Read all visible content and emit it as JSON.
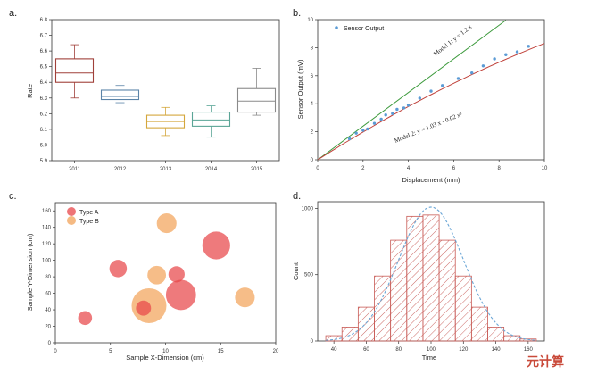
{
  "chart_data": [
    {
      "panel": "a.",
      "type": "box",
      "categories": [
        "2011",
        "2012",
        "2013",
        "2014",
        "2015"
      ],
      "boxes": [
        {
          "min": 6.3,
          "q1": 6.4,
          "median": 6.46,
          "q3": 6.55,
          "max": 6.64,
          "color": "#a0403a"
        },
        {
          "min": 6.27,
          "q1": 6.29,
          "median": 6.31,
          "q3": 6.35,
          "max": 6.38,
          "color": "#5b84a8"
        },
        {
          "min": 6.06,
          "q1": 6.11,
          "median": 6.15,
          "q3": 6.19,
          "max": 6.24,
          "color": "#d4a73c"
        },
        {
          "min": 6.05,
          "q1": 6.12,
          "median": 6.16,
          "q3": 6.21,
          "max": 6.25,
          "color": "#5aa596"
        },
        {
          "min": 6.19,
          "q1": 6.21,
          "median": 6.28,
          "q3": 6.36,
          "max": 6.49,
          "color": "#8a8a8a"
        }
      ],
      "ylabel": "Rate",
      "xlabel": "",
      "ylim": [
        5.9,
        6.8
      ],
      "yticks": [
        "5.9",
        "6.0",
        "6.1",
        "6.2",
        "6.3",
        "6.4",
        "6.5",
        "6.6",
        "6.7",
        "6.8"
      ]
    },
    {
      "panel": "b.",
      "type": "scatter+line",
      "xlabel": "Displacement (mm)",
      "ylabel": "Sensor Output (mV)",
      "xlim": [
        0,
        10
      ],
      "ylim": [
        0,
        10
      ],
      "xticks": [
        "0",
        "2",
        "4",
        "6",
        "8",
        "10"
      ],
      "yticks": [
        "0",
        "2",
        "4",
        "6",
        "8",
        "10"
      ],
      "legend_label": "Sensor Output",
      "points": {
        "x": [
          1.4,
          1.7,
          2.0,
          2.2,
          2.5,
          2.8,
          3.0,
          3.3,
          3.5,
          3.8,
          4.0,
          4.5,
          5.0,
          5.5,
          6.2,
          6.8,
          7.3,
          7.8,
          8.3,
          8.8,
          9.3
        ],
        "y": [
          1.5,
          1.9,
          2.1,
          2.2,
          2.6,
          2.9,
          3.2,
          3.3,
          3.6,
          3.7,
          3.9,
          4.4,
          4.9,
          5.3,
          5.8,
          6.2,
          6.7,
          7.2,
          7.5,
          7.7,
          8.1
        ]
      },
      "model1": {
        "label": "Model 1: y = 1.2 x",
        "slope": 1.2,
        "color": "#3c9a3c"
      },
      "model2": {
        "label": "Model 2: y = 1.03 x - 0.02 x²",
        "a": 1.03,
        "b": -0.02,
        "color": "#c0413a"
      },
      "point_color": "#5b9bd5"
    },
    {
      "panel": "c.",
      "type": "bubble",
      "xlabel": "Sample X-Dimension (cm)",
      "ylabel": "Sample Y-Dimension (cm)",
      "xlim": [
        0,
        20
      ],
      "ylim": [
        0,
        170
      ],
      "xticks": [
        "0",
        "5",
        "10",
        "15",
        "20"
      ],
      "yticks": [
        "0",
        "20",
        "40",
        "60",
        "80",
        "100",
        "120",
        "140",
        "160"
      ],
      "legend": [
        "Type A",
        "Type B"
      ],
      "colors": {
        "Type A": "#e8464a",
        "Type B": "#f2a35a"
      },
      "bubbles": [
        {
          "type": "Type B",
          "x": 10.1,
          "y": 145,
          "size": 17
        },
        {
          "type": "Type A",
          "x": 14.6,
          "y": 118,
          "size": 24
        },
        {
          "type": "Type A",
          "x": 5.7,
          "y": 90,
          "size": 15
        },
        {
          "type": "Type B",
          "x": 9.2,
          "y": 82,
          "size": 16
        },
        {
          "type": "Type A",
          "x": 11.0,
          "y": 83,
          "size": 14
        },
        {
          "type": "Type A",
          "x": 11.4,
          "y": 58,
          "size": 26
        },
        {
          "type": "Type B",
          "x": 8.5,
          "y": 45,
          "size": 30
        },
        {
          "type": "Type A",
          "x": 8.0,
          "y": 42,
          "size": 13
        },
        {
          "type": "Type B",
          "x": 17.2,
          "y": 55,
          "size": 17
        },
        {
          "type": "Type A",
          "x": 2.7,
          "y": 30,
          "size": 12
        }
      ]
    },
    {
      "panel": "d.",
      "type": "histogram",
      "xlabel": "Time",
      "ylabel": "Count",
      "xlim": [
        30,
        170
      ],
      "ylim": [
        0,
        1000
      ],
      "xticks": [
        "40",
        "60",
        "80",
        "100",
        "120",
        "140",
        "160"
      ],
      "yticks": [
        "0",
        "500",
        "1000"
      ],
      "bins": [
        35,
        45,
        55,
        65,
        75,
        85,
        95,
        105,
        115,
        125,
        135,
        145,
        155,
        165
      ],
      "values": [
        40,
        105,
        255,
        490,
        760,
        940,
        950,
        760,
        490,
        255,
        105,
        40,
        15
      ],
      "bar_color": "#c85a55",
      "fit_curve_color": "#6aa6d6"
    }
  ],
  "watermark": "元计算"
}
